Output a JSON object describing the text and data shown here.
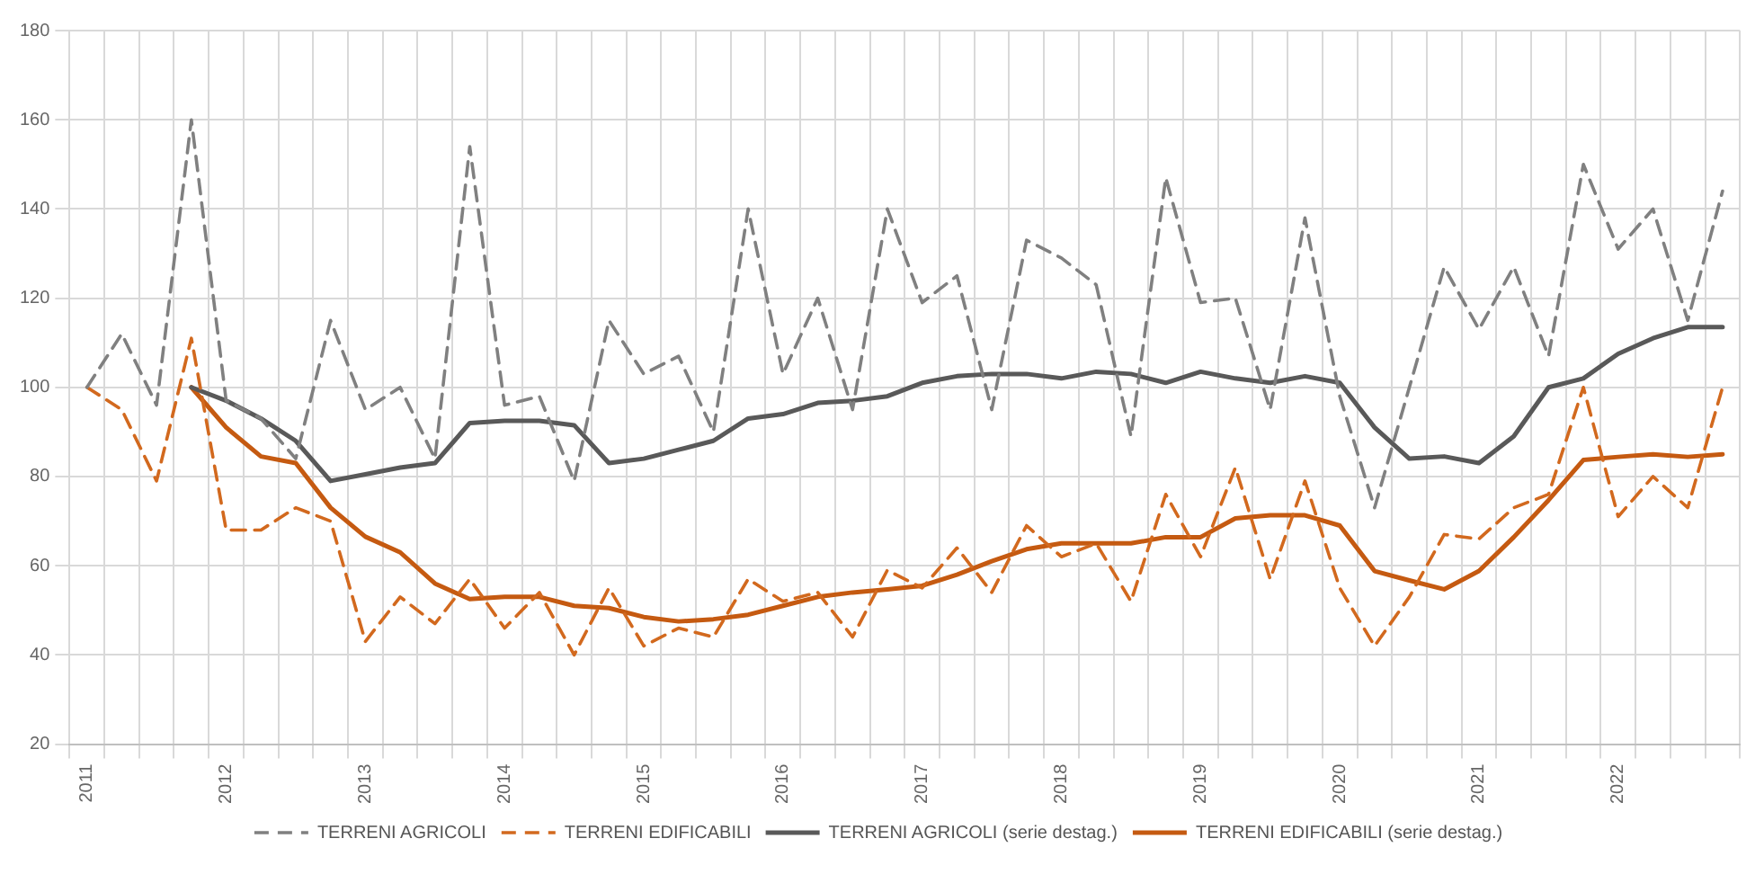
{
  "chart_data": {
    "type": "line",
    "categories": [
      "2011",
      null,
      null,
      null,
      "2012",
      null,
      null,
      null,
      "2013",
      null,
      null,
      null,
      "2014",
      null,
      null,
      null,
      "2015",
      null,
      null,
      null,
      "2016",
      null,
      null,
      null,
      "2017",
      null,
      null,
      null,
      "2018",
      null,
      null,
      null,
      "2019",
      null,
      null,
      null,
      "2020",
      null,
      null,
      null,
      "2021",
      null,
      null,
      null,
      "2022",
      null,
      null,
      null
    ],
    "ylim": [
      20,
      180
    ],
    "yticks": [
      20,
      40,
      60,
      80,
      100,
      120,
      140,
      160,
      180
    ],
    "grid": true,
    "legend": "bottom",
    "marker": "none",
    "series": [
      {
        "name": "TERRENI AGRICOLI",
        "color": "#808080",
        "line_style": "dashed",
        "values": [
          100,
          112,
          96,
          160,
          97,
          93,
          84,
          115,
          95,
          100,
          84,
          154,
          96,
          98,
          79,
          115,
          103,
          107,
          90,
          140,
          103,
          120,
          95,
          140,
          119,
          125,
          95,
          133,
          129,
          123,
          89,
          147,
          119,
          120,
          95,
          138,
          98,
          73,
          100,
          127,
          113,
          127,
          107,
          150,
          131,
          140,
          115,
          144
        ]
      },
      {
        "name": "TERRENI EDIFICABILI",
        "color": "#d2691e",
        "line_style": "dashed",
        "values": [
          100,
          95,
          79,
          111,
          68,
          68,
          73,
          70,
          43,
          53,
          47,
          57,
          46,
          54,
          40,
          55,
          42,
          46,
          44,
          57,
          52,
          54,
          44,
          59,
          55,
          64,
          54,
          69,
          62,
          65,
          52,
          76,
          62,
          82,
          57,
          79,
          55,
          42,
          53,
          67,
          66,
          73,
          76,
          100,
          71,
          80,
          73,
          100
        ]
      },
      {
        "name": "TERRENI AGRICOLI (serie destag.)",
        "color": "#595959",
        "line_style": "solid",
        "values": [
          null,
          null,
          null,
          100,
          97,
          93,
          88,
          79,
          80.5,
          82,
          83,
          92,
          92.5,
          92.5,
          91.5,
          83,
          84,
          86,
          88,
          93,
          94,
          96.5,
          97,
          98,
          101,
          102.5,
          103,
          103,
          102,
          103.5,
          103,
          101,
          103.5,
          102,
          101,
          102.5,
          101,
          91,
          84,
          84.5,
          83,
          89,
          100,
          102,
          107.5,
          111,
          113.5,
          113.5
        ]
      },
      {
        "name": "TERRENI EDIFICABILI (serie destag.)",
        "color": "#c55a11",
        "line_style": "solid",
        "values": [
          null,
          null,
          null,
          100,
          91,
          84.5,
          83,
          73,
          66.5,
          63,
          56,
          52.5,
          53,
          53,
          51,
          50.5,
          48.5,
          47.5,
          48,
          49,
          51,
          53,
          54,
          54.7,
          55.5,
          58,
          61,
          63.7,
          65,
          65,
          65,
          66.4,
          66.4,
          70.6,
          71.3,
          71.3,
          69,
          58.8,
          56.7,
          54.7,
          58.8,
          66.4,
          74.7,
          83.7,
          84.4,
          85,
          84.4,
          85
        ]
      }
    ]
  }
}
